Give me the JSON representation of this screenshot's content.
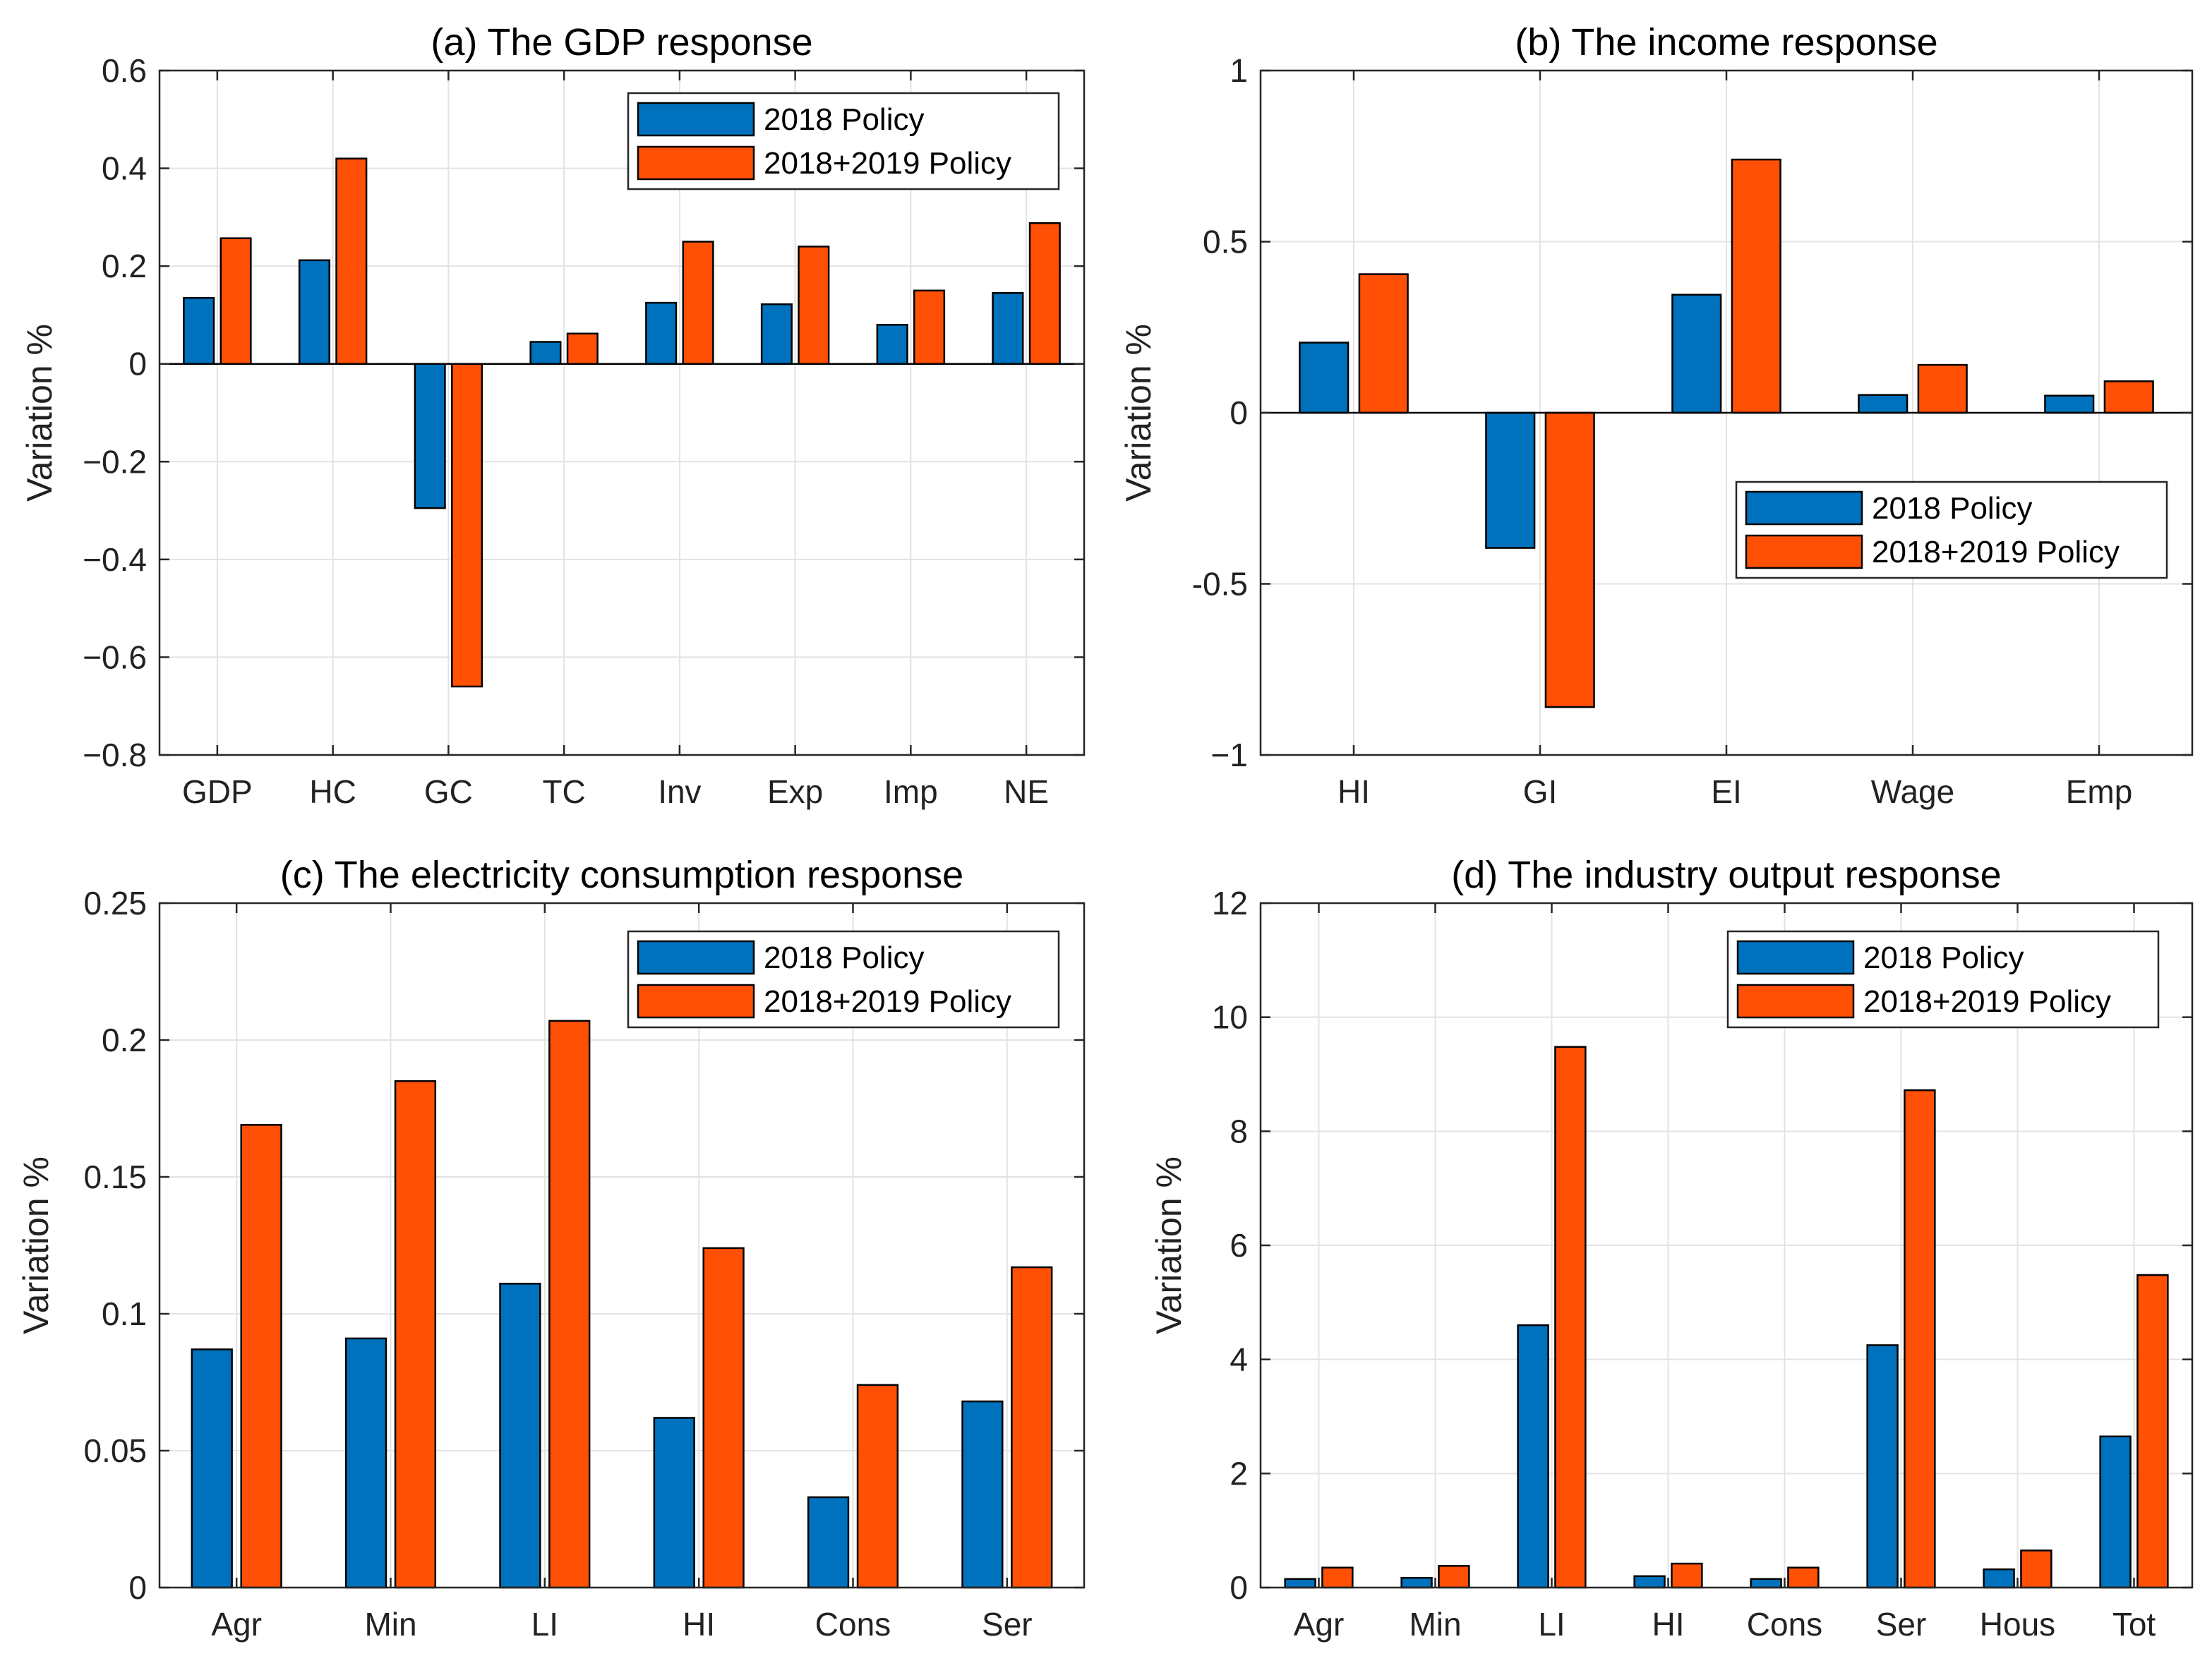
{
  "colors": {
    "series1": "#0072BD",
    "series2": "#FF5005",
    "grid": "#e3e3e3",
    "axis": "#262626"
  },
  "chart_data": [
    {
      "type": "bar",
      "title": "(a) The GDP response",
      "ylabel": "Variation %",
      "xlabel": "",
      "categories": [
        "GDP",
        "HC",
        "GC",
        "TC",
        "Inv",
        "Exp",
        "Imp",
        "NE"
      ],
      "series": [
        {
          "name": "2018 Policy",
          "values": [
            0.135,
            0.212,
            -0.295,
            0.045,
            0.125,
            0.122,
            0.08,
            0.145
          ]
        },
        {
          "name": "2018+2019 Policy",
          "values": [
            0.257,
            0.42,
            -0.66,
            0.062,
            0.25,
            0.24,
            0.15,
            0.288
          ]
        }
      ],
      "ylim": [
        -0.8,
        0.6
      ],
      "yticks": [
        0.6,
        0.4,
        0.2,
        0,
        -0.2,
        -0.4,
        -0.6,
        -0.8
      ],
      "ytick_labels": [
        "0.6",
        "0.4",
        "0.2",
        "0",
        "−0.2",
        "−0.4",
        "−0.6",
        "−0.8"
      ],
      "grid": true,
      "legend_position": "top-right"
    },
    {
      "type": "bar",
      "title": "(b) The income response",
      "ylabel": "Variation %",
      "xlabel": "",
      "categories": [
        "HI",
        "GI",
        "EI",
        "Wage",
        "Emp"
      ],
      "series": [
        {
          "name": "2018 Policy",
          "values": [
            0.205,
            -0.395,
            0.345,
            0.052,
            0.05
          ]
        },
        {
          "name": "2018+2019 Policy",
          "values": [
            0.405,
            -0.86,
            0.74,
            0.14,
            0.092
          ]
        }
      ],
      "ylim": [
        -1,
        1
      ],
      "yticks": [
        1,
        0.5,
        0,
        -0.5,
        -1
      ],
      "ytick_labels": [
        "1",
        "0.5",
        "0",
        "-0.5",
        "−1"
      ],
      "grid": true,
      "legend_position": "center-right"
    },
    {
      "type": "bar",
      "title": "(c) The electricity consumption response",
      "ylabel": "Variation %",
      "xlabel": "",
      "categories": [
        "Agr",
        "Min",
        "LI",
        "HI",
        "Cons",
        "Ser"
      ],
      "series": [
        {
          "name": "2018 Policy",
          "values": [
            0.087,
            0.091,
            0.111,
            0.062,
            0.033,
            0.068
          ]
        },
        {
          "name": "2018+2019 Policy",
          "values": [
            0.169,
            0.185,
            0.207,
            0.124,
            0.074,
            0.117
          ]
        }
      ],
      "ylim": [
        0,
        0.25
      ],
      "yticks": [
        0.25,
        0.2,
        0.15,
        0.1,
        0.05,
        0
      ],
      "ytick_labels": [
        "0.25",
        "0.2",
        "0.15",
        "0.1",
        "0.05",
        "0"
      ],
      "grid": true,
      "legend_position": "top-right"
    },
    {
      "type": "bar",
      "title": "(d) The industry output response",
      "ylabel": "Variation %",
      "xlabel": "",
      "categories": [
        "Agr",
        "Min",
        "LI",
        "HI",
        "Cons",
        "Ser",
        "Hous",
        "Tot"
      ],
      "series": [
        {
          "name": "2018 Policy",
          "values": [
            0.15,
            0.17,
            4.6,
            0.2,
            0.15,
            4.25,
            0.32,
            2.65
          ]
        },
        {
          "name": "2018+2019 Policy",
          "values": [
            0.35,
            0.38,
            9.48,
            0.42,
            0.35,
            8.72,
            0.65,
            5.48
          ]
        }
      ],
      "ylim": [
        0,
        12
      ],
      "yticks": [
        12,
        10,
        8,
        6,
        4,
        2,
        0
      ],
      "ytick_labels": [
        "12",
        "10",
        "8",
        "6",
        "4",
        "2",
        "0"
      ],
      "grid": true,
      "legend_position": "top-right"
    }
  ]
}
